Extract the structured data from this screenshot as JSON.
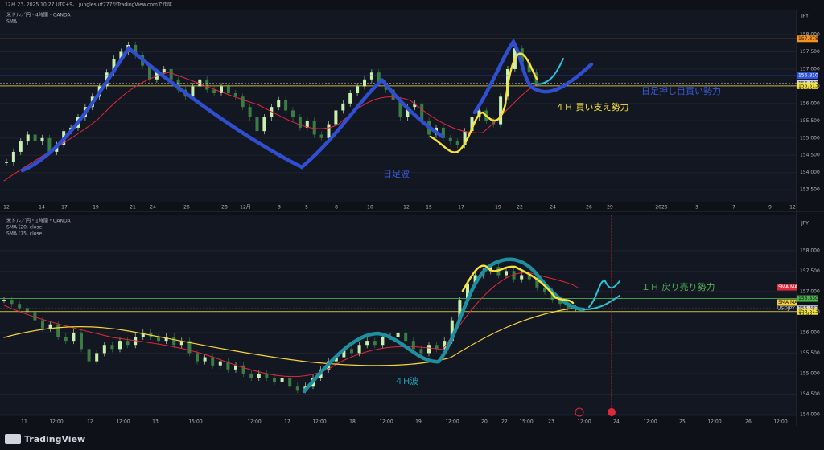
{
  "header": {
    "caption": "12月 23, 2025 10:27 UTC+9、 junglesurf777がTradingView.comで作成"
  },
  "panels": [
    {
      "legend": [
        "米ドル／円・4時間・OANDA",
        "SMA"
      ],
      "currency": "JPY",
      "ylim": [
        153.2,
        158.7
      ],
      "yticks": [
        {
          "value": 158,
          "label": "158.000"
        },
        {
          "value": 157.5,
          "label": "157.500"
        },
        {
          "value": 157,
          "label": "157.000"
        },
        {
          "value": 156.5,
          "label": "156.500"
        },
        {
          "value": 156,
          "label": "156.000"
        },
        {
          "value": 155.5,
          "label": "155.500"
        },
        {
          "value": 155,
          "label": "155.000"
        },
        {
          "value": 154.5,
          "label": "154.500"
        },
        {
          "value": 154,
          "label": "154.000"
        },
        {
          "value": 153.5,
          "label": "153.500"
        }
      ],
      "levels": [
        {
          "value": 157.878,
          "label": "157.878",
          "color": "#f7931a"
        },
        {
          "value": 156.81,
          "label": "156.810",
          "color": "#2f55e0"
        },
        {
          "value": 156.582,
          "label": "156.582",
          "color": "#d1d4dc"
        },
        {
          "value": 156.513,
          "label": "156.513",
          "color": "#f5e23b"
        }
      ],
      "countdown": "32:42",
      "xlabels": [
        "12",
        "14",
        "17",
        "19",
        "21",
        "24",
        "26",
        "28",
        "12月",
        "3",
        "5",
        "8",
        "10",
        "12",
        "15",
        "17",
        "19",
        "22",
        "24",
        "26",
        "29",
        "2026",
        "3",
        "7",
        "9",
        "12"
      ],
      "closes": [
        154.3,
        154.6,
        154.9,
        155.1,
        154.9,
        155.0,
        154.6,
        154.8,
        155.2,
        155.3,
        155.6,
        155.9,
        156.2,
        156.5,
        156.9,
        157.3,
        157.5,
        157.7,
        157.4,
        157.1,
        156.7,
        156.9,
        157.0,
        156.7,
        156.4,
        156.2,
        156.5,
        156.7,
        156.4,
        156.3,
        156.5,
        156.3,
        156.2,
        155.9,
        155.6,
        155.2,
        155.6,
        155.9,
        156.1,
        155.8,
        155.6,
        155.3,
        155.5,
        155.1,
        155.0,
        155.4,
        155.8,
        156.0,
        156.3,
        156.5,
        156.7,
        156.9,
        156.6,
        156.4,
        156.1,
        155.6,
        155.9,
        156.0,
        155.5,
        155.1,
        155.3,
        155.0,
        154.9,
        154.8,
        155.2,
        155.6,
        155.8,
        155.5,
        155.4,
        156.2,
        157.0,
        157.6,
        157.2,
        156.9,
        156.6
      ],
      "annotations": [
        "日足押し目買い勢力",
        "４Ｈ 買い支え勢力",
        "日足波"
      ]
    },
    {
      "legend": [
        "米ドル／円・1時間・OANDA",
        "SMA (20, close)",
        "SMA (75, close)"
      ],
      "currency": "JPY",
      "ylim": [
        153.96,
        158.86
      ],
      "yticks": [
        {
          "value": 158,
          "label": "158.000"
        },
        {
          "value": 157.5,
          "label": "157.500"
        },
        {
          "value": 157,
          "label": "157.000"
        },
        {
          "value": 156.5,
          "label": "156.500"
        },
        {
          "value": 156,
          "label": "156.000"
        },
        {
          "value": 155.5,
          "label": "155.500"
        },
        {
          "value": 155,
          "label": "155.000"
        },
        {
          "value": 154.5,
          "label": "154.500"
        },
        {
          "value": 154,
          "label": "154.000"
        }
      ],
      "levels": [
        {
          "value": 156.83,
          "label": "156.830",
          "color": "#4caf50"
        },
        {
          "value": 156.582,
          "label": "156.582",
          "color": "#d1d4dc"
        },
        {
          "value": 156.513,
          "label": "156.513",
          "color": "#f5e23b"
        }
      ],
      "countdown": "32:42",
      "symbol": "USDJPY",
      "sma_tags": [
        "SMA MA",
        "SMA MA"
      ],
      "xlabels": [
        "11",
        "12:00",
        "12",
        "12:00",
        "13",
        "15:00",
        "12:00",
        "17",
        "12:00",
        "18",
        "12:00",
        "19",
        "12:00",
        "20",
        "22",
        "15:00",
        "23",
        "12:00",
        "24",
        "12:00",
        "25",
        "12:00",
        "26",
        "12:00"
      ],
      "closes": [
        156.8,
        156.7,
        156.6,
        156.5,
        156.3,
        156.1,
        156.2,
        155.9,
        155.8,
        156.0,
        155.6,
        155.3,
        155.5,
        155.7,
        155.6,
        155.8,
        155.7,
        155.9,
        156.0,
        155.9,
        155.8,
        155.9,
        155.7,
        155.8,
        155.5,
        155.3,
        155.4,
        155.2,
        155.3,
        155.1,
        155.2,
        155.0,
        154.9,
        155.0,
        154.9,
        154.8,
        154.9,
        154.7,
        154.6,
        154.7,
        154.9,
        155.1,
        155.3,
        155.4,
        155.6,
        155.5,
        155.7,
        155.8,
        155.7,
        155.9,
        155.9,
        156.0,
        155.8,
        155.6,
        155.5,
        155.7,
        155.6,
        155.8,
        156.3,
        156.8,
        157.2,
        157.4,
        157.5,
        157.6,
        157.4,
        157.5,
        157.3,
        157.4,
        157.3,
        157.1,
        157.0,
        156.8,
        156.7,
        156.6,
        156.6
      ],
      "annotations": [
        "１Ｈ 戻り売り勢力",
        "４H波"
      ]
    }
  ],
  "footer": {
    "brand": "TradingView"
  }
}
